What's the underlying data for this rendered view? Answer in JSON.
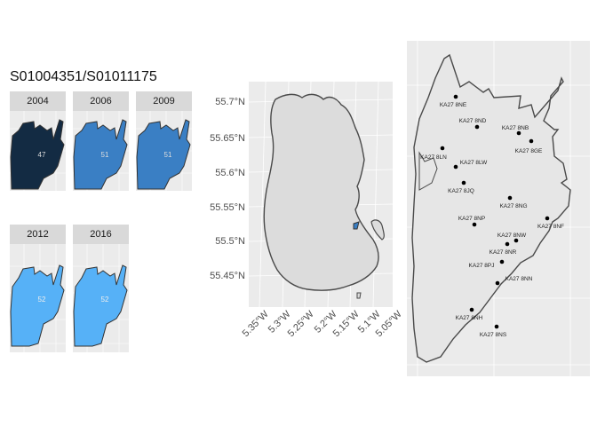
{
  "title": "S01004351/S01011175",
  "colors": {
    "panel_bg": "#ebebeb",
    "strip_bg": "#d9d9d9",
    "grid": "#ffffff",
    "land": "#dcdcdc",
    "outline": "#4a4a4a",
    "fill_47": "#132b43",
    "fill_51": "#3a7fc4",
    "fill_52": "#56b1f7",
    "point": "#000000"
  },
  "facets": [
    {
      "year": "2004",
      "value": "47",
      "fill": "#132b43"
    },
    {
      "year": "2006",
      "value": "51",
      "fill": "#3a7fc4"
    },
    {
      "year": "2009",
      "value": "51",
      "fill": "#3a7fc4"
    },
    {
      "year": "2012",
      "value": "52",
      "fill": "#56b1f7"
    },
    {
      "year": "2016",
      "value": "52",
      "fill": "#56b1f7"
    }
  ],
  "map_axes": {
    "y_ticks": [
      "55.7°N",
      "55.65°N",
      "55.6°N",
      "55.55°N",
      "55.5°N",
      "55.45°N"
    ],
    "x_ticks": [
      "5.35°W",
      "5.3°W",
      "5.25°W",
      "5.2°W",
      "5.15°W",
      "5.1°W",
      "5.05°W"
    ]
  },
  "postcodes": [
    {
      "label": "KA27 8NE"
    },
    {
      "label": "KA27 8ND"
    },
    {
      "label": "KA27 8NB"
    },
    {
      "label": "KA27 8GE"
    },
    {
      "label": "KA27 8LN"
    },
    {
      "label": "KA27 8LW"
    },
    {
      "label": "KA27 8JQ"
    },
    {
      "label": "KA27 8NG"
    },
    {
      "label": "KA27 8NF"
    },
    {
      "label": "KA27 8NP"
    },
    {
      "label": "KA27 8NW"
    },
    {
      "label": "KA27 8NR"
    },
    {
      "label": "KA27 8PJ"
    },
    {
      "label": "KA27 8NN"
    },
    {
      "label": "KA27 8NH"
    },
    {
      "label": "KA27 8NS"
    }
  ]
}
